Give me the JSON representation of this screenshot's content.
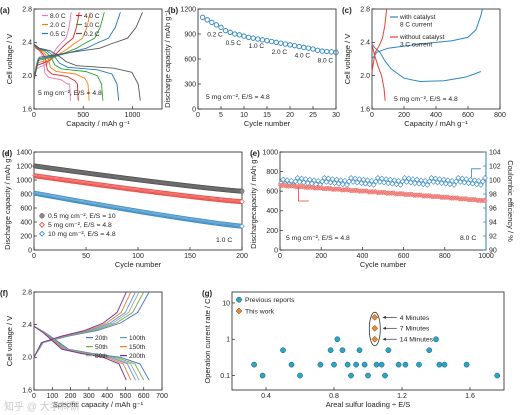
{
  "watermark": "知乎 @ 大学科研",
  "colors": {
    "axis": "#222222",
    "blue": "#2e86c1",
    "red": "#e8403a",
    "black": "#333333"
  },
  "chart_data": [
    {
      "id": "a",
      "panel_label": "(a)",
      "type": "line",
      "xlabel": "Capacity / mAh g⁻¹",
      "ylabel": "Cell voltage / V",
      "xlim": [
        0,
        1300
      ],
      "ylim": [
        1.6,
        2.8
      ],
      "xticks": [
        0,
        500,
        1000
      ],
      "yticks": [
        1.6,
        2.0,
        2.4,
        2.8
      ],
      "annotation": "5 mg cm⁻², E/S = 4.8",
      "legend": [
        "8.0 C",
        "4.0 C",
        "2.0 C",
        "1.0 C",
        "0.5 C",
        "0.2 C"
      ],
      "series": [
        {
          "name": "8.0 C",
          "color": "#e377c2",
          "capacity": 370,
          "disch_plateau": 1.98
        },
        {
          "name": "4.0 C",
          "color": "#d62728",
          "capacity": 450,
          "disch_plateau": 2.02
        },
        {
          "name": "2.0 C",
          "color": "#ff7f0e",
          "capacity": 560,
          "disch_plateau": 2.05
        },
        {
          "name": "1.0 C",
          "color": "#2ca02c",
          "capacity": 700,
          "disch_plateau": 2.08
        },
        {
          "name": "0.5 C",
          "color": "#1f77b4",
          "capacity": 860,
          "disch_plateau": 2.1
        },
        {
          "name": "0.2 C",
          "color": "#555555",
          "capacity": 1080,
          "disch_plateau": 2.12
        }
      ]
    },
    {
      "id": "b",
      "panel_label": "(b)",
      "type": "scatter",
      "xlabel": "Cycle number",
      "ylabel": "Discharge capacity / mAh g⁻¹",
      "xlim": [
        0,
        30
      ],
      "ylim": [
        0,
        1200
      ],
      "xticks": [
        0,
        5,
        10,
        15,
        20,
        25,
        30
      ],
      "yticks": [
        0,
        300,
        600,
        900,
        1200
      ],
      "annotation": "5 mg cm⁻², E/S = 4.8",
      "rate_labels": [
        {
          "text": "0.2 C",
          "x": 2,
          "y": 870
        },
        {
          "text": "0.5 C",
          "x": 6,
          "y": 770
        },
        {
          "text": "1.0 C",
          "x": 11,
          "y": 730
        },
        {
          "text": "2.0 C",
          "x": 16,
          "y": 660
        },
        {
          "text": "4.0 C",
          "x": 21,
          "y": 620
        },
        {
          "text": "8.0 C",
          "x": 26,
          "y": 560
        }
      ],
      "x": [
        1,
        2,
        3,
        4,
        5,
        6,
        7,
        8,
        9,
        10,
        11,
        12,
        13,
        14,
        15,
        16,
        17,
        18,
        19,
        20,
        21,
        22,
        23,
        24,
        25,
        26,
        27,
        28,
        29,
        30
      ],
      "y": [
        1100,
        1070,
        1040,
        1010,
        980,
        940,
        920,
        900,
        890,
        875,
        860,
        850,
        840,
        830,
        820,
        810,
        800,
        790,
        780,
        770,
        760,
        750,
        740,
        730,
        720,
        705,
        695,
        690,
        685,
        680
      ]
    },
    {
      "id": "c",
      "panel_label": "(c)",
      "type": "line",
      "xlabel": "Capacity / mAh g⁻¹",
      "ylabel": "Cell voltage / V",
      "xlim": [
        0,
        800
      ],
      "ylim": [
        1.6,
        2.8
      ],
      "xticks": [
        0,
        200,
        400,
        600,
        800
      ],
      "yticks": [
        1.6,
        2.0,
        2.4,
        2.8
      ],
      "annotation": "5 mg cm⁻², E/S = 4.8",
      "legend": [
        "with catalyst 8 C current",
        "without catalyst 3 C current"
      ],
      "series": [
        {
          "name": "with catalyst 8 C current",
          "color": "#2e86c1"
        },
        {
          "name": "without catalyst 3 C current",
          "color": "#e8403a"
        }
      ]
    },
    {
      "id": "d",
      "panel_label": "(d)",
      "type": "scatter",
      "xlabel": "Cycle number",
      "ylabel": "Discharge capacity / mAh g⁻¹",
      "xlim": [
        0,
        200
      ],
      "ylim": [
        0,
        1400
      ],
      "xticks": [
        0,
        50,
        100,
        150,
        200
      ],
      "yticks": [
        0,
        200,
        400,
        600,
        800,
        1000,
        1200,
        1400
      ],
      "annotation": "1.0 C",
      "series": [
        {
          "name": "0.5 mg cm⁻², E/S = 10",
          "color": "#444444",
          "start": 1200,
          "end": 840
        },
        {
          "name": "5 mg cm⁻², E/S = 4.8",
          "color": "#e8403a",
          "start": 1060,
          "end": 690
        },
        {
          "name": "10 mg cm⁻², E/S = 4.8",
          "color": "#2e86c1",
          "start": 810,
          "end": 340
        }
      ]
    },
    {
      "id": "e",
      "panel_label": "(e)",
      "type": "scatter",
      "xlabel": "Cycle number",
      "ylabel": "Dischargecapacity / mAh g⁻¹",
      "y2label": "Coulombic efficiency / %",
      "xlim": [
        0,
        1000
      ],
      "ylim": [
        0,
        1000
      ],
      "y2lim": [
        90,
        104
      ],
      "xticks": [
        0,
        200,
        400,
        600,
        800,
        1000
      ],
      "yticks": [
        0,
        200,
        400,
        600,
        800,
        1000
      ],
      "y2ticks": [
        90,
        92,
        94,
        96,
        98,
        100,
        102,
        104
      ],
      "annotation": "5 mg cm⁻², E/S = 4.8",
      "annotation2": "8.0 C",
      "capacity": {
        "start": 660,
        "end": 500,
        "color": "#e8403a"
      },
      "efficiency": {
        "level": 99.8,
        "color": "#2e86c1"
      }
    },
    {
      "id": "f",
      "panel_label": "(f)",
      "type": "line",
      "xlabel": "Specific capacity / mAh g⁻¹",
      "ylabel": "Cell voltage / V",
      "xlim": [
        0,
        700
      ],
      "ylim": [
        1.6,
        2.8
      ],
      "xticks": [
        0,
        100,
        200,
        300,
        400,
        500,
        600,
        700
      ],
      "yticks": [
        1.6,
        2.0,
        2.4,
        2.8
      ],
      "series": [
        {
          "name": "20th",
          "color": "#4472c4",
          "capacity": 630
        },
        {
          "name": "50th",
          "color": "#70ad47",
          "capacity": 600
        },
        {
          "name": "80th",
          "color": "#a5a5a5",
          "capacity": 575
        },
        {
          "name": "100th",
          "color": "#5b9bd5",
          "capacity": 555
        },
        {
          "name": "150th",
          "color": "#ed7d31",
          "capacity": 530
        },
        {
          "name": "200th",
          "color": "#7030a0",
          "capacity": 505
        }
      ]
    },
    {
      "id": "g",
      "panel_label": "(g)",
      "type": "scatter",
      "xlabel": "Areal sulfur loading ÷ E/S",
      "ylabel": "Operation current rate / C",
      "xlim": [
        0.2,
        1.8
      ],
      "yscale": "log",
      "ylim": [
        0.04,
        20
      ],
      "xticks": [
        0.4,
        0.8,
        1.2,
        1.6
      ],
      "yticks": [
        0.1,
        1,
        10
      ],
      "legend": [
        "Previous reports",
        "This work"
      ],
      "previous": [
        {
          "x": 0.33,
          "y": 0.2
        },
        {
          "x": 0.38,
          "y": 0.1
        },
        {
          "x": 0.55,
          "y": 0.2
        },
        {
          "x": 0.6,
          "y": 0.1
        },
        {
          "x": 0.72,
          "y": 0.2
        },
        {
          "x": 0.78,
          "y": 0.5
        },
        {
          "x": 0.8,
          "y": 0.2
        },
        {
          "x": 0.82,
          "y": 1
        },
        {
          "x": 0.85,
          "y": 0.5
        },
        {
          "x": 0.88,
          "y": 0.2
        },
        {
          "x": 0.9,
          "y": 0.1
        },
        {
          "x": 0.93,
          "y": 0.2
        },
        {
          "x": 0.95,
          "y": 0.5
        },
        {
          "x": 0.98,
          "y": 0.2
        },
        {
          "x": 1.0,
          "y": 0.1
        },
        {
          "x": 1.05,
          "y": 0.2
        },
        {
          "x": 1.08,
          "y": 0.2
        },
        {
          "x": 1.1,
          "y": 0.1
        },
        {
          "x": 1.12,
          "y": 0.5
        },
        {
          "x": 1.18,
          "y": 0.2
        },
        {
          "x": 1.22,
          "y": 0.2
        },
        {
          "x": 1.3,
          "y": 0.2
        },
        {
          "x": 1.36,
          "y": 0.5
        },
        {
          "x": 1.4,
          "y": 1
        },
        {
          "x": 1.42,
          "y": 0.2
        },
        {
          "x": 1.45,
          "y": 0.2
        },
        {
          "x": 1.58,
          "y": 0.2
        },
        {
          "x": 1.76,
          "y": 0.1
        },
        {
          "x": 0.5,
          "y": 0.5
        }
      ],
      "this_work": [
        {
          "x": 1.04,
          "y": 4,
          "label": "4 Minutes"
        },
        {
          "x": 1.04,
          "y": 2,
          "label": "7 Minutes"
        },
        {
          "x": 1.04,
          "y": 1,
          "label": "14 Minutes"
        }
      ]
    }
  ]
}
